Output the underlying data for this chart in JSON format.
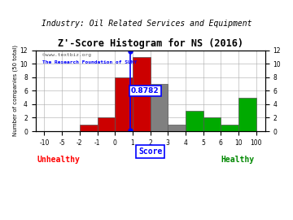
{
  "title": "Z'-Score Histogram for NS (2016)",
  "subtitle": "Industry: Oil Related Services and Equipment",
  "watermark1": "©www.textbiz.org",
  "watermark2": "The Research Foundation of SUNY",
  "xlabel_main": "Score",
  "xlabel_left": "Unhealthy",
  "xlabel_right": "Healthy",
  "ylabel": "Number of companies (50 total)",
  "marker_value": 0.8782,
  "marker_label": "0.8782",
  "ylim": [
    0,
    12
  ],
  "yticks": [
    0,
    2,
    4,
    6,
    8,
    10,
    12
  ],
  "bg_color": "#ffffff",
  "grid_color": "#aaaaaa",
  "title_fontsize": 8.5,
  "subtitle_fontsize": 7,
  "bar_colors_by_bin": {
    "-2": "#cc0000",
    "-1": "#cc0000",
    "0": "#cc0000",
    "1": "#cc0000",
    "2": "#808080",
    "3": "#808080",
    "4": "#00aa00",
    "5": "#00aa00",
    "6": "#00aa00",
    "10": "#00aa00",
    "100": "#00aa00"
  },
  "tick_labels": [
    "-10",
    "-5",
    "-2",
    "-1",
    "0",
    "1",
    "2",
    "3",
    "4",
    "5",
    "6",
    "10",
    "100"
  ],
  "tick_positions": [
    -10,
    -5,
    -2,
    -1,
    0,
    1,
    2,
    3,
    4,
    5,
    6,
    10,
    100
  ],
  "bin_edges": [
    -10,
    -5,
    -2,
    -1,
    0,
    1,
    2,
    3,
    4,
    5,
    6,
    10,
    100
  ],
  "bin_heights": [
    0,
    0,
    1,
    2,
    8,
    11,
    7,
    1,
    3,
    2,
    1,
    5
  ],
  "bin_colors": [
    "#cc0000",
    "#cc0000",
    "#cc0000",
    "#cc0000",
    "#cc0000",
    "#cc0000",
    "#808080",
    "#808080",
    "#00aa00",
    "#00aa00",
    "#00aa00",
    "#00aa00"
  ]
}
